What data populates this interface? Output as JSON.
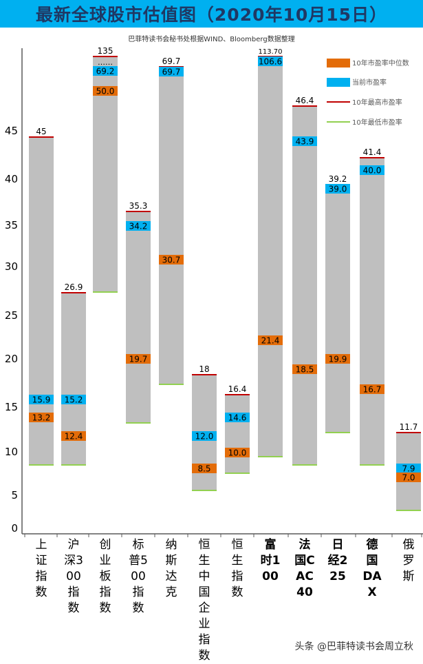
{
  "title": "最新全球股市估值图（2020年10月15日）",
  "subtitle": "巴菲特读书会秘书处根据WIND、Bloomberg数据整理",
  "watermark": "头条 @巴菲特读书会周立秋",
  "chart_data": {
    "type": "bar",
    "title": "最新全球股市估值图（2020年10月15日）",
    "yticks": [
      0,
      5,
      10,
      15,
      20,
      25,
      30,
      35,
      40,
      45
    ],
    "legend": [
      {
        "key": "median",
        "label": "10年市盈率中位数",
        "color": "#e36c09"
      },
      {
        "key": "current",
        "label": "当前市盈率",
        "color": "#00b0f0"
      },
      {
        "key": "max",
        "label": "10年最高市盈率",
        "color": "#c00000"
      },
      {
        "key": "min",
        "label": "10年最低市盈率",
        "color": "#92d050"
      }
    ],
    "categories": [
      {
        "name": "上证指数",
        "max_label": "45",
        "current": "15.9",
        "median": "13.2"
      },
      {
        "name": "沪深300指数",
        "max_label": "26.9",
        "current": "15.2",
        "median": "12.4"
      },
      {
        "name": "创业板指数",
        "max_label": "135",
        "current": "69.2",
        "median": "50.0",
        "note": "……"
      },
      {
        "name": "标普500指数",
        "max_label": "35.3",
        "current": "34.2",
        "median": "19.7"
      },
      {
        "name": "纳斯达克",
        "max_label": "69.7",
        "current": "69.7",
        "median": "30.7"
      },
      {
        "name": "恒生中国企业指数",
        "max_label": "18",
        "current": "12.0",
        "median": "8.5"
      },
      {
        "name": "恒生指数",
        "max_label": "16.4",
        "current": "14.6",
        "median": "10.0"
      },
      {
        "name": "富时100",
        "max_label": "113.70",
        "current": "106.6",
        "median": "21.4"
      },
      {
        "name": "法国CAC40",
        "max_label": "46.4",
        "current": "43.9",
        "median": "18.5"
      },
      {
        "name": "日经225",
        "max_label": "39.2",
        "current": "39.0",
        "median": "19.9"
      },
      {
        "name": "德国DAX",
        "max_label": "41.4",
        "current": "40.0",
        "median": "16.7"
      },
      {
        "name": "俄罗斯",
        "max_label": "11.7",
        "current": "7.9",
        "median": "7.0"
      }
    ]
  }
}
